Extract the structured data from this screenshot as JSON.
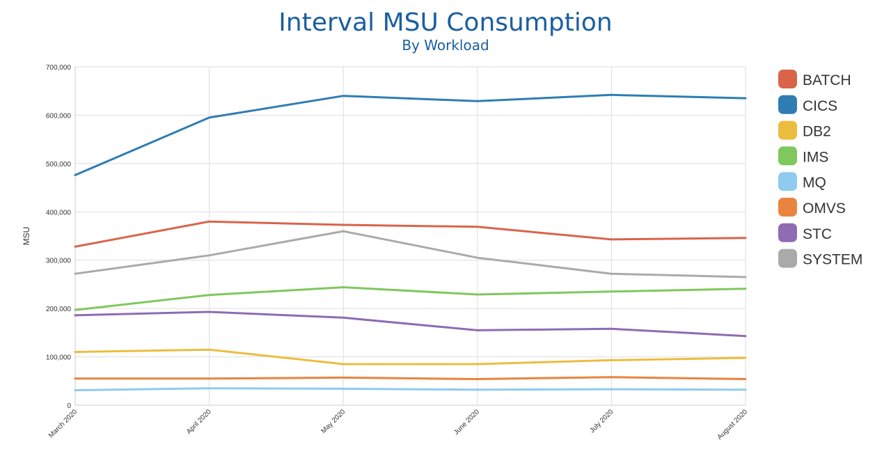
{
  "chart_data": {
    "type": "line",
    "title": "Interval MSU Consumption",
    "subtitle": "By Workload",
    "xlabel": "",
    "ylabel": "MSU",
    "categories": [
      "March 2020",
      "April 2020",
      "May 2020",
      "June 2020",
      "July 2020",
      "August 2020"
    ],
    "ylim": [
      0,
      700000
    ],
    "yticks": [
      0,
      100000,
      200000,
      300000,
      400000,
      500000,
      600000,
      700000
    ],
    "ytick_labels": [
      "0",
      "100,000",
      "200,000",
      "300,000",
      "400,000",
      "500,000",
      "600,000",
      "700,000"
    ],
    "grid": true,
    "legend_position": "right",
    "series": [
      {
        "name": "BATCH",
        "color": "#d9644a",
        "values": [
          328000,
          380000,
          373000,
          369000,
          343000,
          346000
        ]
      },
      {
        "name": "CICS",
        "color": "#2e7db3",
        "values": [
          476000,
          595000,
          640000,
          629000,
          642000,
          635000
        ]
      },
      {
        "name": "DB2",
        "color": "#ebbd3e",
        "values": [
          110000,
          115000,
          85000,
          85000,
          93000,
          98000
        ]
      },
      {
        "name": "IMS",
        "color": "#7ec85c",
        "values": [
          197000,
          228000,
          244000,
          229000,
          235000,
          241000
        ]
      },
      {
        "name": "MQ",
        "color": "#8ecbef",
        "values": [
          31000,
          35000,
          34000,
          32000,
          33000,
          32000
        ]
      },
      {
        "name": "OMVS",
        "color": "#e9843f",
        "values": [
          55000,
          55000,
          57000,
          54000,
          58000,
          54000
        ]
      },
      {
        "name": "STC",
        "color": "#8e6bb3",
        "values": [
          186000,
          193000,
          181000,
          155000,
          158000,
          143000
        ]
      },
      {
        "name": "SYSTEM",
        "color": "#aaaaaa",
        "values": [
          272000,
          310000,
          360000,
          305000,
          272000,
          265000
        ]
      }
    ],
    "title_color": "#1a5ea0",
    "grid_color": "#dddddd",
    "axis_color": "#cccccc"
  }
}
